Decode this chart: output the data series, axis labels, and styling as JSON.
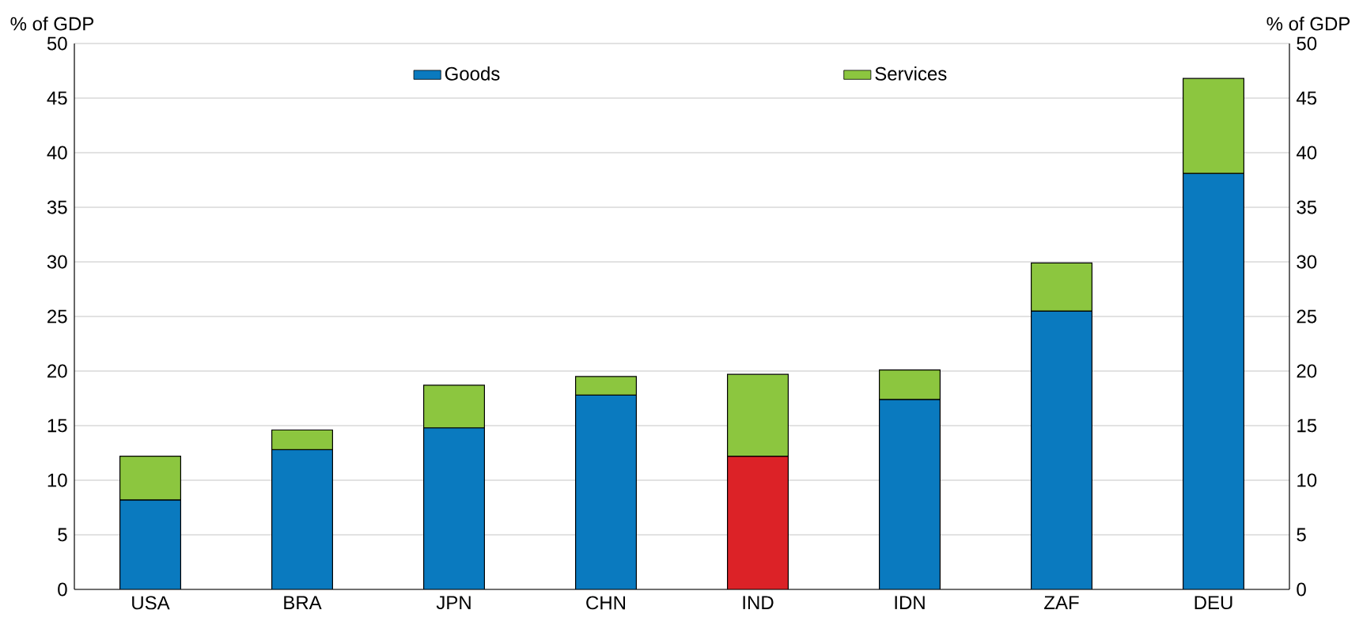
{
  "chart_data": {
    "type": "bar",
    "stacked": true,
    "categories": [
      "USA",
      "BRA",
      "JPN",
      "CHN",
      "IND",
      "IDN",
      "ZAF",
      "DEU"
    ],
    "series": [
      {
        "name": "Goods",
        "color": "#0a7abf",
        "colors": [
          "#0a7abf",
          "#0a7abf",
          "#0a7abf",
          "#0a7abf",
          "#dc2227",
          "#0a7abf",
          "#0a7abf",
          "#0a7abf"
        ],
        "values": [
          8.2,
          12.8,
          14.8,
          17.8,
          12.2,
          17.4,
          25.5,
          38.1
        ]
      },
      {
        "name": "Services",
        "color": "#8cc63f",
        "values": [
          4.0,
          1.8,
          3.9,
          1.7,
          7.5,
          2.7,
          4.4,
          8.7
        ]
      }
    ],
    "ylabel": "% of GDP",
    "y2label": "% of GDP",
    "ylim": [
      0,
      50
    ],
    "yticks": [
      0,
      5,
      10,
      15,
      20,
      25,
      30,
      35,
      40,
      45,
      50
    ],
    "y2lim": [
      0,
      50
    ],
    "y2ticks": [
      0,
      5,
      10,
      15,
      20,
      25,
      30,
      35,
      40,
      45,
      50
    ],
    "grid": "y",
    "legend": "top"
  }
}
